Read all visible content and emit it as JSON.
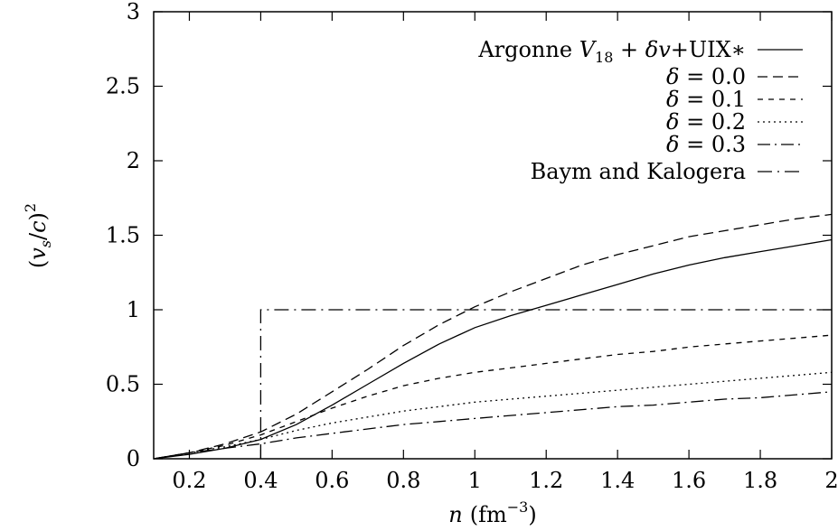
{
  "chart_data": {
    "type": "line",
    "title": "",
    "xlabel": "n (fm⁻³)",
    "xlabel_parts": {
      "var": "n",
      "unit": "(fm",
      "exp": "−3",
      "close": ")"
    },
    "ylabel": "(v_s/c)^2",
    "ylabel_parts": {
      "open": "(",
      "v": "v",
      "sub": "s",
      "slash": "/",
      "c": "c",
      "close": ")",
      "sup": "2"
    },
    "xlim": [
      0.1,
      2.0
    ],
    "ylim": [
      0,
      3
    ],
    "xticks": [
      0.2,
      0.4,
      0.6,
      0.8,
      1.0,
      1.2,
      1.4,
      1.6,
      1.8,
      2.0
    ],
    "xtick_labels": [
      "0.2",
      "0.4",
      "0.6",
      "0.8",
      "1",
      "1.2",
      "1.4",
      "1.6",
      "1.8",
      "2"
    ],
    "yticks": [
      0,
      0.5,
      1.0,
      1.5,
      2.0,
      2.5,
      3.0
    ],
    "ytick_labels": [
      "0",
      "0.5",
      "1",
      "1.5",
      "2",
      "2.5",
      "3"
    ],
    "grid": false,
    "legend_position": "top-right",
    "series": [
      {
        "name": "Argonne V18 + δv+UIX*",
        "label_parts": {
          "pre": "Argonne ",
          "V": "V",
          "sub": "18",
          "mid": " + ",
          "delta": "δ",
          "v": "v",
          "post": "+UIX∗"
        },
        "dash": "solid",
        "x": [
          0.1,
          0.2,
          0.3,
          0.4,
          0.5,
          0.6,
          0.7,
          0.8,
          0.9,
          1.0,
          1.1,
          1.2,
          1.3,
          1.4,
          1.5,
          1.6,
          1.7,
          1.8,
          1.9,
          2.0
        ],
        "y": [
          0.0,
          0.03,
          0.07,
          0.13,
          0.23,
          0.36,
          0.5,
          0.64,
          0.77,
          0.88,
          0.96,
          1.03,
          1.1,
          1.17,
          1.24,
          1.3,
          1.35,
          1.39,
          1.43,
          1.47
        ]
      },
      {
        "name": "δ = 0.0",
        "label_parts": {
          "delta": "δ",
          "post": " = 0.0"
        },
        "dash": "dashed",
        "x": [
          0.1,
          0.2,
          0.3,
          0.4,
          0.5,
          0.6,
          0.7,
          0.8,
          0.9,
          1.0,
          1.1,
          1.2,
          1.3,
          1.4,
          1.5,
          1.6,
          1.7,
          1.8,
          1.9,
          2.0
        ],
        "y": [
          0.0,
          0.04,
          0.1,
          0.18,
          0.3,
          0.45,
          0.6,
          0.76,
          0.9,
          1.02,
          1.12,
          1.21,
          1.3,
          1.37,
          1.43,
          1.49,
          1.53,
          1.57,
          1.61,
          1.64
        ]
      },
      {
        "name": "δ = 0.1",
        "label_parts": {
          "delta": "δ",
          "post": " = 0.1"
        },
        "dash": "short-dashed",
        "x": [
          0.1,
          0.2,
          0.3,
          0.4,
          0.5,
          0.6,
          0.7,
          0.8,
          0.9,
          1.0,
          1.1,
          1.2,
          1.3,
          1.4,
          1.5,
          1.6,
          1.7,
          1.8,
          1.9,
          2.0
        ],
        "y": [
          0.0,
          0.04,
          0.09,
          0.16,
          0.25,
          0.34,
          0.42,
          0.49,
          0.54,
          0.58,
          0.61,
          0.64,
          0.67,
          0.7,
          0.72,
          0.75,
          0.77,
          0.79,
          0.81,
          0.83
        ]
      },
      {
        "name": "δ = 0.2",
        "label_parts": {
          "delta": "δ",
          "post": " = 0.2"
        },
        "dash": "dotted",
        "x": [
          0.1,
          0.2,
          0.3,
          0.4,
          0.5,
          0.6,
          0.7,
          0.8,
          0.9,
          1.0,
          1.1,
          1.2,
          1.3,
          1.4,
          1.5,
          1.6,
          1.7,
          1.8,
          1.9,
          2.0
        ],
        "y": [
          0.0,
          0.04,
          0.08,
          0.13,
          0.19,
          0.24,
          0.28,
          0.32,
          0.35,
          0.38,
          0.4,
          0.42,
          0.44,
          0.46,
          0.48,
          0.5,
          0.52,
          0.54,
          0.56,
          0.58
        ]
      },
      {
        "name": "δ = 0.3",
        "label_parts": {
          "delta": "δ",
          "post": " = 0.3"
        },
        "dash": "dash-dot",
        "x": [
          0.1,
          0.2,
          0.3,
          0.4,
          0.5,
          0.6,
          0.7,
          0.8,
          0.9,
          1.0,
          1.1,
          1.2,
          1.3,
          1.4,
          1.5,
          1.6,
          1.7,
          1.8,
          1.9,
          2.0
        ],
        "y": [
          0.0,
          0.04,
          0.07,
          0.1,
          0.14,
          0.17,
          0.2,
          0.23,
          0.25,
          0.27,
          0.29,
          0.31,
          0.33,
          0.35,
          0.36,
          0.38,
          0.4,
          0.41,
          0.43,
          0.45
        ]
      },
      {
        "name": "Baym and Kalogera",
        "label_parts": {
          "pre": "Baym and Kalogera"
        },
        "dash": "dash-dot-long",
        "x": [
          0.4,
          0.4,
          2.0
        ],
        "y": [
          0.0,
          1.0,
          1.0
        ]
      }
    ]
  }
}
